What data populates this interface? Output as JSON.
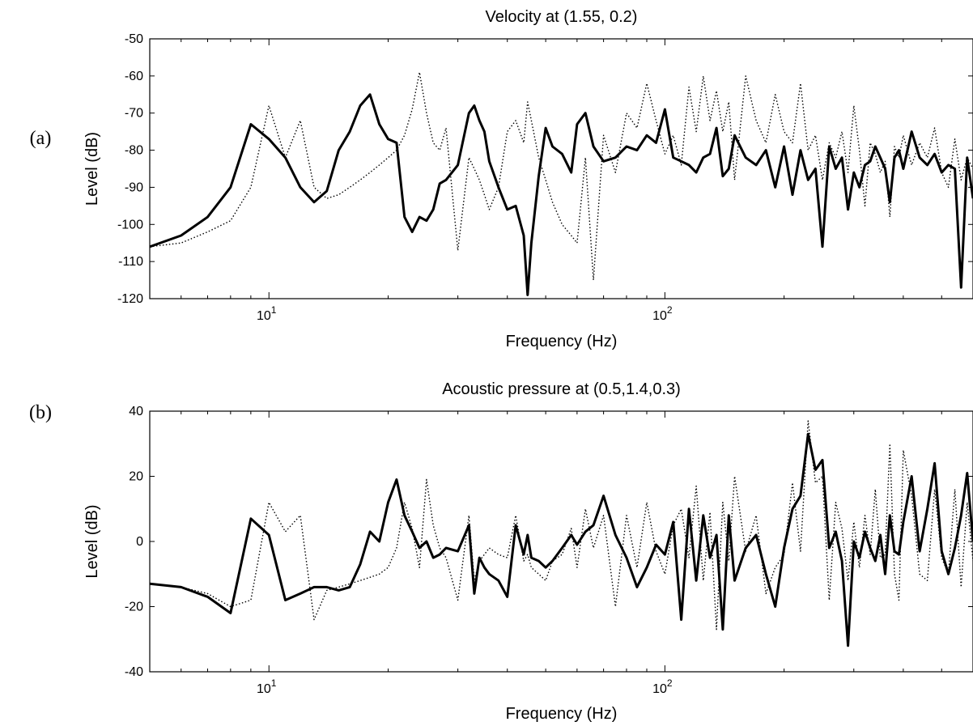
{
  "chart_data": [
    {
      "type": "line",
      "panel_label": "(a)",
      "title": "Velocity at (1.55, 0.2)",
      "xlabel": "Frequency (Hz)",
      "ylabel": "Level (dB)",
      "xscale": "log",
      "xlim": [
        5,
        600
      ],
      "ylim": [
        -120,
        -50
      ],
      "yticks": [
        "-50",
        "-60",
        "-70",
        "-80",
        "-90",
        "-100",
        "-110",
        "-120"
      ],
      "xtick_labels": [
        {
          "base": "10",
          "exp": "1"
        },
        {
          "base": "10",
          "exp": "2"
        }
      ],
      "grid": false,
      "series": [
        {
          "style": "solid",
          "color": "#000000",
          "x": [
            5,
            6,
            7,
            8,
            9,
            10,
            11,
            12,
            13,
            14,
            15,
            16,
            17,
            18,
            19,
            20,
            21,
            22,
            23,
            24,
            25,
            26,
            27,
            28,
            30,
            32,
            33,
            34,
            35,
            36,
            38,
            40,
            42,
            44,
            45,
            46,
            48,
            50,
            52,
            55,
            58,
            60,
            63,
            66,
            70,
            75,
            80,
            85,
            90,
            95,
            100,
            105,
            110,
            115,
            120,
            125,
            130,
            135,
            140,
            145,
            150,
            160,
            170,
            180,
            190,
            200,
            210,
            220,
            230,
            240,
            250,
            260,
            270,
            280,
            290,
            300,
            310,
            320,
            330,
            340,
            350,
            360,
            370,
            380,
            390,
            400,
            420,
            440,
            460,
            480,
            500,
            520,
            540,
            560,
            580,
            600
          ],
          "y": [
            -106,
            -103,
            -98,
            -90,
            -73,
            -77,
            -82,
            -90,
            -94,
            -91,
            -80,
            -75,
            -68,
            -65,
            -73,
            -77,
            -78,
            -98,
            -102,
            -98,
            -99,
            -96,
            -89,
            -88,
            -84,
            -70,
            -68,
            -72,
            -75,
            -83,
            -90,
            -96,
            -95,
            -103,
            -119,
            -105,
            -87,
            -74,
            -79,
            -81,
            -86,
            -73,
            -70,
            -79,
            -83,
            -82,
            -79,
            -80,
            -76,
            -78,
            -69,
            -82,
            -83,
            -84,
            -86,
            -82,
            -81,
            -74,
            -87,
            -85,
            -76,
            -82,
            -84,
            -80,
            -90,
            -79,
            -92,
            -80,
            -88,
            -85,
            -106,
            -79,
            -85,
            -82,
            -96,
            -86,
            -90,
            -84,
            -83,
            -79,
            -82,
            -85,
            -94,
            -82,
            -80,
            -85,
            -75,
            -82,
            -84,
            -81,
            -86,
            -84,
            -85,
            -117,
            -82,
            -93
          ]
        },
        {
          "style": "dotted",
          "color": "#000000",
          "x": [
            5,
            6,
            7,
            8,
            9,
            10,
            11,
            12,
            13,
            14,
            15,
            16,
            17,
            18,
            19,
            20,
            21,
            22,
            23,
            24,
            25,
            26,
            27,
            28,
            30,
            32,
            33,
            34,
            35,
            36,
            38,
            40,
            42,
            44,
            45,
            46,
            48,
            50,
            52,
            55,
            58,
            60,
            63,
            66,
            70,
            75,
            80,
            85,
            90,
            95,
            100,
            105,
            110,
            115,
            120,
            125,
            130,
            135,
            140,
            145,
            150,
            160,
            170,
            180,
            190,
            200,
            210,
            220,
            230,
            240,
            250,
            260,
            270,
            280,
            290,
            300,
            310,
            320,
            330,
            340,
            350,
            360,
            370,
            380,
            390,
            400,
            420,
            440,
            460,
            480,
            500,
            520,
            540,
            560,
            580,
            600
          ],
          "y": [
            -106,
            -105,
            -102,
            -99,
            -90,
            -68,
            -82,
            -72,
            -90,
            -93,
            -92,
            -90,
            -88,
            -86,
            -84,
            -82,
            -80,
            -76,
            -69,
            -59,
            -70,
            -78,
            -80,
            -74,
            -107,
            -82,
            -85,
            -88,
            -92,
            -96,
            -90,
            -75,
            -72,
            -78,
            -67,
            -72,
            -82,
            -88,
            -94,
            -100,
            -103,
            -105,
            -82,
            -115,
            -76,
            -86,
            -70,
            -74,
            -62,
            -72,
            -81,
            -76,
            -84,
            -63,
            -75,
            -60,
            -72,
            -64,
            -75,
            -67,
            -88,
            -60,
            -72,
            -78,
            -65,
            -75,
            -78,
            -62,
            -80,
            -76,
            -88,
            -78,
            -82,
            -75,
            -86,
            -68,
            -80,
            -95,
            -78,
            -81,
            -86,
            -83,
            -98,
            -79,
            -82,
            -76,
            -84,
            -78,
            -82,
            -74,
            -86,
            -90,
            -77,
            -88,
            -82,
            -85
          ]
        }
      ]
    },
    {
      "type": "line",
      "panel_label": "(b)",
      "title": "Acoustic pressure at (0.5,1.4,0.3)",
      "xlabel": "Frequency (Hz)",
      "ylabel": "Level (dB)",
      "xscale": "log",
      "xlim": [
        5,
        600
      ],
      "ylim": [
        -40,
        40
      ],
      "yticks": [
        "40",
        "20",
        "0",
        "-20",
        "-40"
      ],
      "xtick_labels": [
        {
          "base": "10",
          "exp": "1"
        },
        {
          "base": "10",
          "exp": "2"
        }
      ],
      "grid": false,
      "series": [
        {
          "style": "solid",
          "color": "#000000",
          "x": [
            5,
            6,
            7,
            8,
            9,
            10,
            11,
            12,
            13,
            14,
            15,
            16,
            17,
            18,
            19,
            20,
            21,
            22,
            23,
            24,
            25,
            26,
            27,
            28,
            30,
            32,
            33,
            34,
            35,
            36,
            38,
            40,
            42,
            44,
            45,
            46,
            48,
            50,
            52,
            55,
            58,
            60,
            63,
            66,
            70,
            75,
            80,
            85,
            90,
            95,
            100,
            105,
            110,
            115,
            120,
            125,
            130,
            135,
            140,
            145,
            150,
            160,
            170,
            180,
            190,
            200,
            210,
            220,
            230,
            240,
            250,
            260,
            270,
            280,
            290,
            300,
            310,
            320,
            330,
            340,
            350,
            360,
            370,
            380,
            390,
            400,
            420,
            440,
            460,
            480,
            500,
            520,
            540,
            560,
            580,
            600
          ],
          "y": [
            -13,
            -14,
            -17,
            -22,
            7,
            2,
            -18,
            -16,
            -14,
            -14,
            -15,
            -14,
            -7,
            3,
            0,
            12,
            19,
            8,
            3,
            -2,
            0,
            -5,
            -4,
            -2,
            -3,
            5,
            -16,
            -5,
            -8,
            -10,
            -12,
            -17,
            5,
            -4,
            2,
            -5,
            -6,
            -8,
            -6,
            -2,
            2,
            -1,
            3,
            5,
            14,
            2,
            -5,
            -14,
            -8,
            -1,
            -4,
            6,
            -24,
            10,
            -12,
            8,
            -5,
            2,
            -27,
            8,
            -12,
            -2,
            2,
            -10,
            -20,
            -2,
            10,
            14,
            33,
            22,
            25,
            -2,
            3,
            -6,
            -32,
            0,
            -5,
            3,
            -2,
            -6,
            2,
            -10,
            8,
            -3,
            -4,
            6,
            20,
            -3,
            10,
            24,
            -3,
            -10,
            -2,
            8,
            21,
            0
          ]
        },
        {
          "style": "dotted",
          "color": "#000000",
          "x": [
            5,
            6,
            7,
            8,
            9,
            10,
            11,
            12,
            13,
            14,
            15,
            16,
            17,
            18,
            19,
            20,
            21,
            22,
            23,
            24,
            25,
            26,
            27,
            28,
            30,
            32,
            33,
            34,
            35,
            36,
            38,
            40,
            42,
            44,
            45,
            46,
            48,
            50,
            52,
            55,
            58,
            60,
            63,
            66,
            70,
            75,
            80,
            85,
            90,
            95,
            100,
            105,
            110,
            115,
            120,
            125,
            130,
            135,
            140,
            145,
            150,
            160,
            170,
            180,
            190,
            200,
            210,
            220,
            230,
            240,
            250,
            260,
            270,
            280,
            290,
            300,
            310,
            320,
            330,
            340,
            350,
            360,
            370,
            380,
            390,
            400,
            420,
            440,
            460,
            480,
            500,
            520,
            540,
            560,
            580,
            600
          ],
          "y": [
            -13,
            -14,
            -16,
            -20,
            -18,
            12,
            3,
            8,
            -24,
            -15,
            -14,
            -13,
            -12,
            -11,
            -10,
            -8,
            -2,
            12,
            4,
            -8,
            19,
            5,
            -2,
            -5,
            -18,
            8,
            -12,
            -6,
            -4,
            -2,
            -4,
            -5,
            8,
            -6,
            -4,
            -8,
            -10,
            -12,
            -6,
            -4,
            4,
            -8,
            10,
            -2,
            8,
            -20,
            8,
            -8,
            12,
            -3,
            -10,
            5,
            10,
            -5,
            17,
            -12,
            9,
            -27,
            12,
            -6,
            20,
            -3,
            8,
            -16,
            -8,
            -4,
            18,
            -3,
            37,
            18,
            20,
            -18,
            12,
            4,
            -12,
            6,
            -8,
            8,
            -4,
            16,
            -5,
            -4,
            30,
            -10,
            -18,
            28,
            14,
            -10,
            -12,
            16,
            -5,
            -10,
            16,
            -14,
            12,
            -6
          ]
        }
      ]
    }
  ]
}
